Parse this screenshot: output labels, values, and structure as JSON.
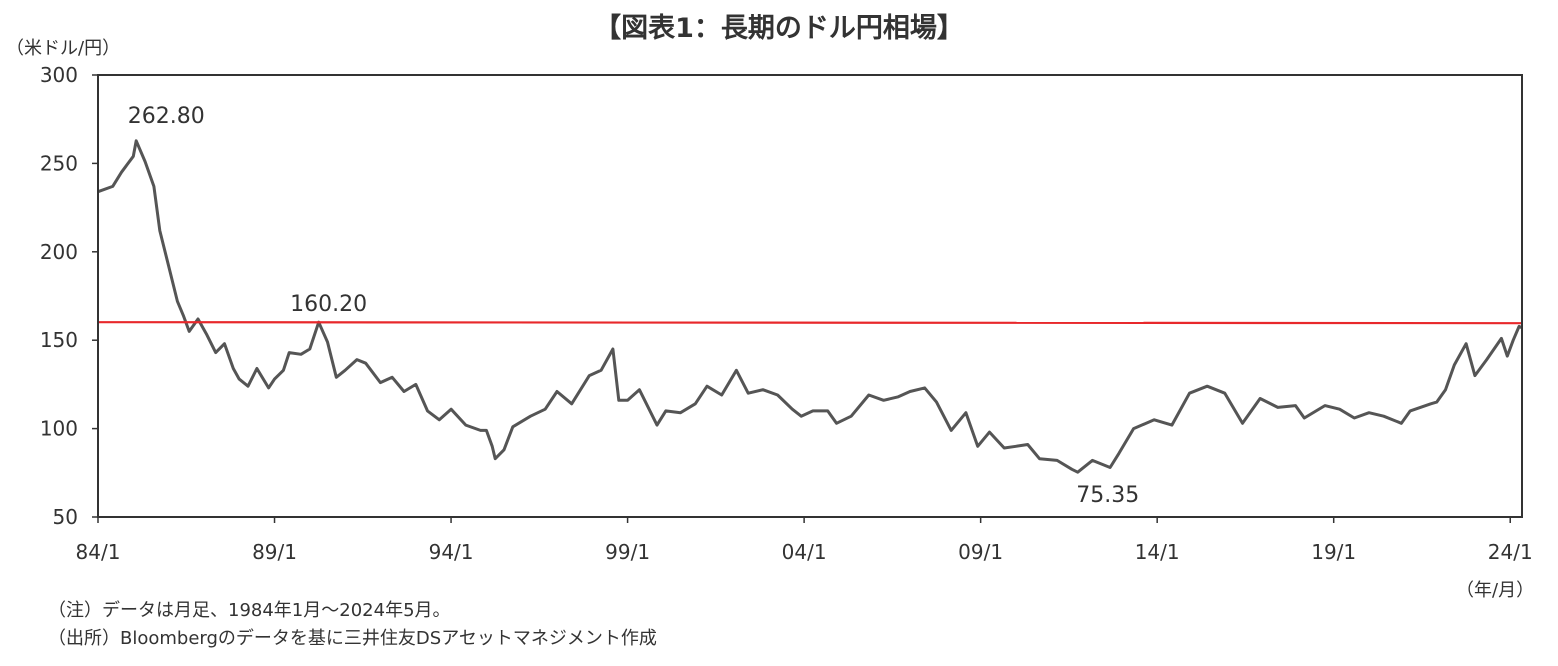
{
  "title": "【図表1：長期のドル円相場】",
  "y_unit_label": "（米ドル/円）",
  "x_unit_label": "（年/月）",
  "notes": {
    "note1": "（注）データは月足、1984年1月～2024年5月。",
    "note2": "（出所）Bloombergのデータを基に三井住友DSアセットマネジメント作成"
  },
  "colors": {
    "series_line": "#555555",
    "reference_line": "#e8282b",
    "axis": "#333333"
  },
  "chart_data": {
    "type": "line",
    "x_ticks": [
      "84/1",
      "89/1",
      "94/1",
      "99/1",
      "04/1",
      "09/1",
      "14/1",
      "19/1",
      "24/1"
    ],
    "y_ticks": [
      50,
      100,
      150,
      200,
      250,
      300
    ],
    "xlim": [
      "1984-01",
      "2024-05"
    ],
    "ylim": [
      50,
      300
    ],
    "grid": false,
    "series": [
      {
        "values": [
          [
            "1984-01",
            234
          ],
          [
            "1984-06",
            237
          ],
          [
            "1984-09",
            245
          ],
          [
            "1985-01",
            254
          ],
          [
            "1985-02",
            262.8
          ],
          [
            "1985-05",
            251
          ],
          [
            "1985-08",
            237
          ],
          [
            "1985-10",
            212
          ],
          [
            "1986-01",
            192
          ],
          [
            "1986-04",
            172
          ],
          [
            "1986-06",
            164
          ],
          [
            "1986-08",
            155
          ],
          [
            "1986-11",
            162
          ],
          [
            "1987-02",
            153
          ],
          [
            "1987-05",
            143
          ],
          [
            "1987-08",
            148
          ],
          [
            "1987-11",
            134
          ],
          [
            "1988-01",
            128
          ],
          [
            "1988-04",
            124
          ],
          [
            "1988-07",
            134
          ],
          [
            "1988-11",
            123
          ],
          [
            "1989-01",
            128
          ],
          [
            "1989-04",
            133
          ],
          [
            "1989-06",
            143
          ],
          [
            "1989-10",
            142
          ],
          [
            "1990-01",
            145
          ],
          [
            "1990-04",
            160.2
          ],
          [
            "1990-07",
            149
          ],
          [
            "1990-10",
            129
          ],
          [
            "1991-01",
            133
          ],
          [
            "1991-05",
            139
          ],
          [
            "1991-08",
            137
          ],
          [
            "1992-01",
            126
          ],
          [
            "1992-05",
            129
          ],
          [
            "1992-09",
            121
          ],
          [
            "1993-01",
            125
          ],
          [
            "1993-05",
            110
          ],
          [
            "1993-09",
            105
          ],
          [
            "1994-01",
            111
          ],
          [
            "1994-06",
            102
          ],
          [
            "1994-11",
            99
          ],
          [
            "1995-01",
            99
          ],
          [
            "1995-03",
            90
          ],
          [
            "1995-04",
            83
          ],
          [
            "1995-07",
            88
          ],
          [
            "1995-10",
            101
          ],
          [
            "1996-04",
            107
          ],
          [
            "1996-09",
            111
          ],
          [
            "1997-01",
            121
          ],
          [
            "1997-06",
            114
          ],
          [
            "1997-12",
            130
          ],
          [
            "1998-04",
            133
          ],
          [
            "1998-08",
            145
          ],
          [
            "1998-10",
            116
          ],
          [
            "1999-01",
            116
          ],
          [
            "1999-05",
            122
          ],
          [
            "1999-11",
            102
          ],
          [
            "2000-02",
            110
          ],
          [
            "2000-07",
            109
          ],
          [
            "2000-12",
            114
          ],
          [
            "2001-04",
            124
          ],
          [
            "2001-09",
            119
          ],
          [
            "2002-02",
            133
          ],
          [
            "2002-06",
            120
          ],
          [
            "2002-11",
            122
          ],
          [
            "2003-04",
            119
          ],
          [
            "2003-09",
            111
          ],
          [
            "2003-12",
            107
          ],
          [
            "2004-04",
            110
          ],
          [
            "2004-09",
            110
          ],
          [
            "2004-12",
            103
          ],
          [
            "2005-05",
            107
          ],
          [
            "2005-11",
            119
          ],
          [
            "2006-04",
            116
          ],
          [
            "2006-09",
            118
          ],
          [
            "2007-01",
            121
          ],
          [
            "2007-06",
            123
          ],
          [
            "2007-10",
            115
          ],
          [
            "2008-03",
            99
          ],
          [
            "2008-08",
            109
          ],
          [
            "2008-12",
            90
          ],
          [
            "2009-04",
            98
          ],
          [
            "2009-09",
            89
          ],
          [
            "2010-01",
            90
          ],
          [
            "2010-05",
            91
          ],
          [
            "2010-09",
            83
          ],
          [
            "2011-03",
            82
          ],
          [
            "2011-08",
            77
          ],
          [
            "2011-10",
            75.35
          ],
          [
            "2012-03",
            82
          ],
          [
            "2012-09",
            78
          ],
          [
            "2012-12",
            86
          ],
          [
            "2013-05",
            100
          ],
          [
            "2013-12",
            105
          ],
          [
            "2014-06",
            102
          ],
          [
            "2014-12",
            120
          ],
          [
            "2015-06",
            124
          ],
          [
            "2015-12",
            120
          ],
          [
            "2016-06",
            103
          ],
          [
            "2016-12",
            117
          ],
          [
            "2017-06",
            112
          ],
          [
            "2017-12",
            113
          ],
          [
            "2018-03",
            106
          ],
          [
            "2018-10",
            113
          ],
          [
            "2019-03",
            111
          ],
          [
            "2019-08",
            106
          ],
          [
            "2020-01",
            109
          ],
          [
            "2020-06",
            107
          ],
          [
            "2020-12",
            103
          ],
          [
            "2021-03",
            110
          ],
          [
            "2021-10",
            114
          ],
          [
            "2021-12",
            115
          ],
          [
            "2022-03",
            122
          ],
          [
            "2022-06",
            136
          ],
          [
            "2022-10",
            148
          ],
          [
            "2023-01",
            130
          ],
          [
            "2023-05",
            139
          ],
          [
            "2023-10",
            151
          ],
          [
            "2023-12",
            141
          ],
          [
            "2024-02",
            150
          ],
          [
            "2024-04",
            157.8
          ],
          [
            "2024-05",
            157
          ]
        ]
      }
    ],
    "reference_line": {
      "value": 160.2
    },
    "annotations": [
      {
        "text": "262.80",
        "x": "1985-02",
        "y": 262.8
      },
      {
        "text": "160.20",
        "x": "1990-04",
        "y": 160.2
      },
      {
        "text": "75.35",
        "x": "2011-10",
        "y": 75.35
      }
    ]
  }
}
